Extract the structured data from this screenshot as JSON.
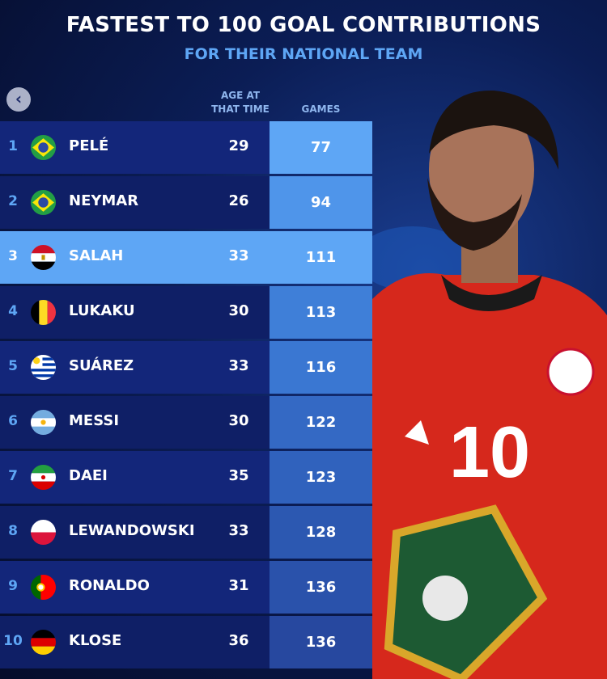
{
  "title": "FASTEST TO 100 GOAL CONTRIBUTIONS",
  "subtitle": "FOR THEIR NATIONAL TEAM",
  "columns": {
    "age": "AGE AT THAT TIME",
    "games": "GAMES"
  },
  "highlight_color": "#5ea6f5",
  "rows": [
    {
      "rank": "1",
      "name": "PELÉ",
      "country": "brazil",
      "age": "29",
      "games": "77"
    },
    {
      "rank": "2",
      "name": "NEYMAR",
      "country": "brazil",
      "age": "26",
      "games": "94"
    },
    {
      "rank": "3",
      "name": "SALAH",
      "country": "egypt",
      "age": "33",
      "games": "111",
      "highlighted": true
    },
    {
      "rank": "4",
      "name": "LUKAKU",
      "country": "belgium",
      "age": "30",
      "games": "113"
    },
    {
      "rank": "5",
      "name": "SUÁREZ",
      "country": "uruguay",
      "age": "33",
      "games": "116"
    },
    {
      "rank": "6",
      "name": "MESSI",
      "country": "argentina",
      "age": "30",
      "games": "122"
    },
    {
      "rank": "7",
      "name": "DAEI",
      "country": "iran",
      "age": "35",
      "games": "123"
    },
    {
      "rank": "8",
      "name": "LEWANDOWSKI",
      "country": "poland",
      "age": "33",
      "games": "128"
    },
    {
      "rank": "9",
      "name": "RONALDO",
      "country": "portugal",
      "age": "31",
      "games": "136"
    },
    {
      "rank": "10",
      "name": "KLOSE",
      "country": "germany",
      "age": "36",
      "games": "136"
    }
  ],
  "jersey_number": "10",
  "back_button_icon": "chevron-left-icon"
}
